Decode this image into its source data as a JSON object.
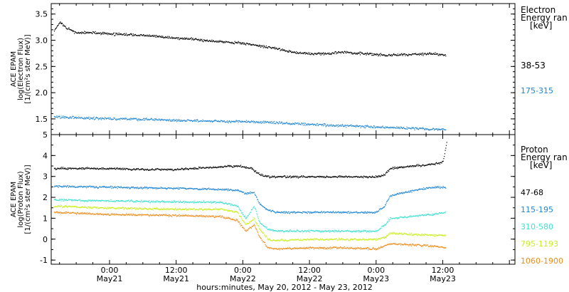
{
  "figure": {
    "xlabel": "hours:minutes, May 20, 2012 - May 23, 2012",
    "time_ticks": [
      {
        "hour": 24,
        "time": "0:00",
        "date": "May21"
      },
      {
        "hour": 36,
        "time": "12:00",
        "date": "May21"
      },
      {
        "hour": 48,
        "time": "0:00",
        "date": "May22"
      },
      {
        "hour": 60,
        "time": "12:00",
        "date": "May22"
      },
      {
        "hour": 72,
        "time": "0:00",
        "date": "May23"
      },
      {
        "hour": 84,
        "time": "12:00",
        "date": "May23"
      }
    ]
  },
  "chart_data": [
    {
      "type": "scatter",
      "panel": "electron",
      "ylabel": [
        "ACE EPAM",
        "log(Electron Flux)",
        "[1/(cm²s ster MeV)]"
      ],
      "ylim": [
        1.2,
        3.7
      ],
      "yticks": [
        "1.5",
        "2.0",
        "2.5",
        "3.0",
        "3.5"
      ],
      "ytick_values": [
        1.5,
        2.0,
        2.5,
        3.0,
        3.5
      ],
      "xlim_hours": [
        13.5,
        97
      ],
      "legend_title": [
        "Electron",
        "Energy ran",
        "[keV]"
      ],
      "series": [
        {
          "name": "38-53",
          "color": "#000000",
          "x": [
            14,
            15,
            16,
            18,
            21,
            24,
            30,
            36,
            42,
            48,
            51,
            54,
            57,
            60,
            63,
            66,
            70,
            74,
            78,
            82,
            84.5
          ],
          "y": [
            3.2,
            3.35,
            3.25,
            3.15,
            3.15,
            3.13,
            3.1,
            3.05,
            3.0,
            2.95,
            2.9,
            2.85,
            2.78,
            2.75,
            2.75,
            2.78,
            2.75,
            2.72,
            2.74,
            2.75,
            2.72
          ]
        },
        {
          "name": "175-315",
          "color": "#1f86d6",
          "x": [
            14,
            20,
            30,
            40,
            50,
            60,
            66,
            72,
            78,
            84.5
          ],
          "y": [
            1.55,
            1.52,
            1.5,
            1.47,
            1.45,
            1.4,
            1.38,
            1.35,
            1.33,
            1.3
          ]
        }
      ]
    },
    {
      "type": "scatter",
      "panel": "proton",
      "ylabel": [
        "ACE EPAM",
        "log(Proton Flux)",
        "[1/(cm²s ster MeV)]"
      ],
      "ylim": [
        -1.2,
        5.0
      ],
      "yticks": [
        "-1",
        "0",
        "1",
        "2",
        "3",
        "4",
        "5"
      ],
      "ytick_values": [
        -1,
        0,
        1,
        2,
        3,
        4,
        5
      ],
      "xlim_hours": [
        13.5,
        97
      ],
      "legend_title": [
        "Proton",
        "Energy ran",
        "[keV]"
      ],
      "series": [
        {
          "name": "47-68",
          "color": "#000000",
          "x": [
            14,
            24,
            30,
            36,
            42,
            45,
            47.5,
            49.5,
            51,
            52.5,
            60,
            66,
            72,
            73.5,
            74.5,
            78,
            82,
            84,
            84.7
          ],
          "y": [
            3.4,
            3.4,
            3.35,
            3.35,
            3.45,
            3.5,
            3.5,
            3.4,
            3.1,
            3.0,
            3.0,
            3.0,
            3.0,
            3.1,
            3.4,
            3.5,
            3.6,
            3.7,
            4.7
          ]
        },
        {
          "name": "115-195",
          "color": "#1f86d6",
          "x": [
            14,
            24,
            36,
            44,
            47,
            48.5,
            50,
            51,
            52.5,
            54,
            60,
            66,
            72,
            73.5,
            74.5,
            78,
            82,
            84.5
          ],
          "y": [
            2.55,
            2.5,
            2.45,
            2.4,
            2.35,
            2.2,
            2.25,
            1.7,
            1.4,
            1.3,
            1.3,
            1.3,
            1.3,
            1.6,
            2.1,
            2.3,
            2.5,
            2.5
          ]
        },
        {
          "name": "310-580",
          "color": "#3fe0cf",
          "x": [
            14,
            24,
            36,
            44,
            47,
            48.5,
            50,
            51,
            52.5,
            54,
            60,
            66,
            72,
            73.5,
            74.5,
            78,
            82,
            84.5
          ],
          "y": [
            1.9,
            1.85,
            1.8,
            1.78,
            1.6,
            1.0,
            1.6,
            0.8,
            0.5,
            0.4,
            0.4,
            0.4,
            0.4,
            0.7,
            1.0,
            1.1,
            1.2,
            1.3
          ]
        },
        {
          "name": "795-1193",
          "color": "#c8ee1e",
          "x": [
            14,
            24,
            36,
            44,
            47,
            48.5,
            50,
            51,
            52.5,
            54,
            60,
            66,
            72,
            73.5,
            74.5,
            78,
            82,
            84.5
          ],
          "y": [
            1.6,
            1.5,
            1.45,
            1.45,
            1.3,
            0.7,
            1.0,
            0.5,
            0.0,
            -0.05,
            0.0,
            0.0,
            0.0,
            0.1,
            0.3,
            0.25,
            0.2,
            0.2
          ]
        },
        {
          "name": "1060-1900",
          "color": "#f08c1a",
          "x": [
            14,
            24,
            36,
            44,
            47,
            48.5,
            50,
            51,
            52.5,
            54,
            60,
            66,
            72,
            73.5,
            74.5,
            78,
            82,
            84.5
          ],
          "y": [
            1.3,
            1.2,
            1.15,
            1.1,
            0.9,
            0.4,
            0.7,
            0.1,
            -0.4,
            -0.45,
            -0.4,
            -0.4,
            -0.45,
            -0.3,
            -0.2,
            -0.25,
            -0.3,
            -0.4
          ]
        }
      ]
    }
  ]
}
